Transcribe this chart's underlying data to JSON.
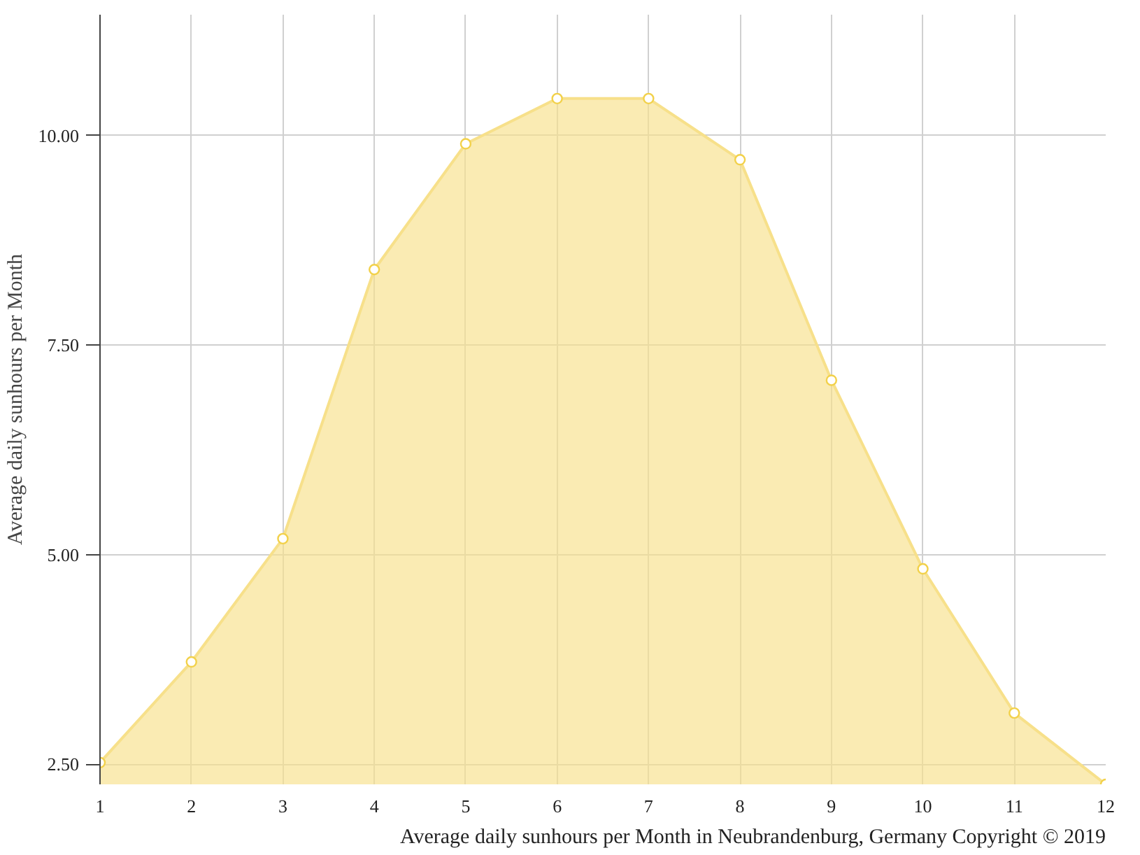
{
  "chart_data": {
    "type": "area",
    "x": [
      1,
      2,
      3,
      4,
      5,
      6,
      7,
      8,
      9,
      10,
      11,
      12
    ],
    "series": [
      {
        "color": "#f7e08a",
        "values": [
          2.52,
          3.72,
          5.19,
          8.4,
          9.9,
          10.44,
          10.44,
          9.71,
          7.08,
          4.83,
          3.11,
          2.26
        ]
      }
    ],
    "xlim": [
      1,
      12
    ],
    "xticks": [
      1,
      2,
      3,
      4,
      5,
      6,
      7,
      8,
      9,
      10,
      11,
      12
    ],
    "ylim": [
      2.26,
      11.44
    ],
    "yticks": [
      {
        "value": 2.5,
        "label": "2.50"
      },
      {
        "value": 5,
        "label": "5.00"
      },
      {
        "value": 7.5,
        "label": "7.50"
      },
      {
        "value": 10,
        "label": "10.00"
      }
    ],
    "ylabel": "Average daily sunhours per Month",
    "annotations": [
      "Average daily sunhours per Month in Neubrandenburg, Germany Copyright © 2019"
    ],
    "grid": true,
    "marker": "circle",
    "line_style": "solid"
  }
}
